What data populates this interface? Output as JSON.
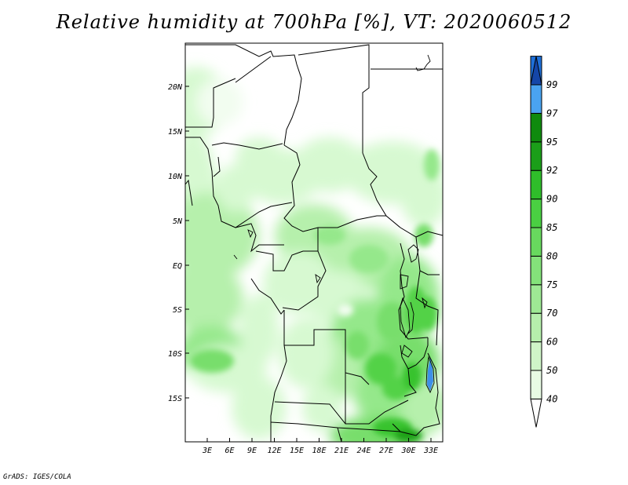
{
  "title": "Relative humidity at 700hPa [%], VT: 2020060512",
  "footer": "GrADS: IGES/COLA",
  "map": {
    "lat_labels": [
      "20N",
      "15N",
      "10N",
      "5N",
      "EQ",
      "5S",
      "10S",
      "15S"
    ],
    "lon_labels": [
      "3E",
      "6E",
      "9E",
      "12E",
      "15E",
      "18E",
      "21E",
      "24E",
      "27E",
      "30E",
      "33E"
    ],
    "fill_colors": [
      "#f2fdf0",
      "#d7f9d1",
      "#b6f0ac",
      "#95e88b",
      "#78de6c",
      "#53d246",
      "#37c32e",
      "#1ea117",
      "#0d8a0b"
    ]
  },
  "colorbar": {
    "levels": [
      "40",
      "50",
      "60",
      "70",
      "75",
      "80",
      "85",
      "90",
      "92",
      "95",
      "97",
      "99"
    ],
    "colors": [
      "#ffffff",
      "#e8fbe4",
      "#cff5c8",
      "#b6efac",
      "#9ee994",
      "#84e27a",
      "#68d95e",
      "#4acf42",
      "#2fbd2a",
      "#1b9e19",
      "#0f8a0e",
      "#4aa3f0",
      "#1f70d8",
      "#1546a8"
    ]
  }
}
